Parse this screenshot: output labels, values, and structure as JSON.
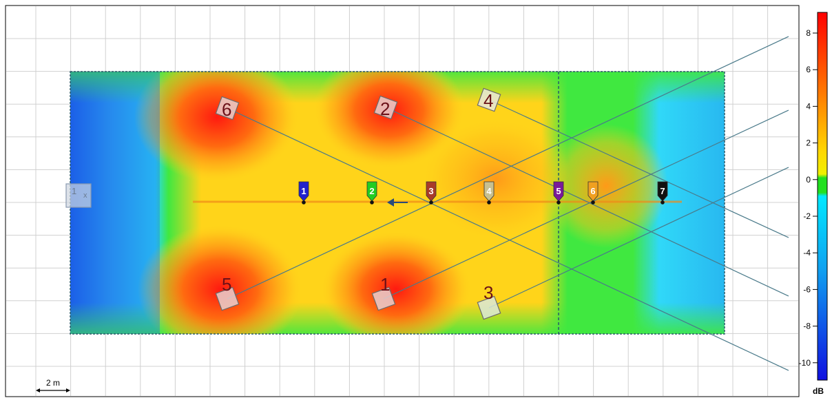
{
  "scale_bar": {
    "label": "2 m"
  },
  "colorbar": {
    "unit": "dB",
    "ticks": [
      "8",
      "6",
      "4",
      "2",
      "0",
      "-2",
      "-4",
      "-6",
      "-8",
      "-10"
    ]
  },
  "speakers": [
    {
      "label": "6",
      "color": "#e8d0d0"
    },
    {
      "label": "2",
      "color": "#e8d0d0"
    },
    {
      "label": "4",
      "color": "#e7e7dc"
    },
    {
      "label": "5",
      "color": "#e8d0d0"
    },
    {
      "label": "1",
      "color": "#e8d0d0"
    },
    {
      "label": "3",
      "color": "#d9e8d9"
    }
  ],
  "listener_label": "1",
  "mics": [
    {
      "label": "1",
      "color": "#2222cc"
    },
    {
      "label": "2",
      "color": "#22cc22"
    },
    {
      "label": "3",
      "color": "#a83a2a"
    },
    {
      "label": "4",
      "color": "#c8c090"
    },
    {
      "label": "5",
      "color": "#7a1a9a"
    },
    {
      "label": "6",
      "color": "#f0a020"
    },
    {
      "label": "7",
      "color": "#111111"
    }
  ]
}
